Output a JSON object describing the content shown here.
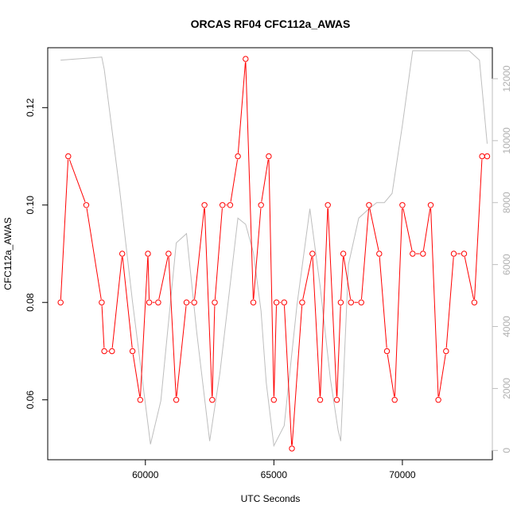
{
  "chart_data": {
    "type": "line",
    "title": "ORCAS RF04 CFC112a_AWAS",
    "xlabel": "UTC Seconds",
    "ylabel": "CFC112a_AWAS",
    "xlim": [
      56200,
      73500
    ],
    "ylim": [
      0.0477,
      0.1323
    ],
    "y2lim": [
      -300,
      13000
    ],
    "x_ticks": [
      60000,
      65000,
      70000
    ],
    "x_tick_labels": [
      "60000",
      "65000",
      "70000"
    ],
    "y_ticks": [
      0.06,
      0.08,
      0.1,
      0.12
    ],
    "y_tick_labels": [
      "0.06",
      "0.08",
      "0.10",
      "0.12"
    ],
    "y2_ticks": [
      0,
      2000,
      4000,
      6000,
      8000,
      10000,
      12000
    ],
    "y2_tick_labels": [
      "0",
      "2000",
      "4000",
      "6000",
      "8000",
      "10000",
      "12000"
    ],
    "grid": false,
    "colors": {
      "primary": "#ff0000",
      "secondary": "#bebebe"
    },
    "series": [
      {
        "axis": "left",
        "style": "line+points",
        "x": [
          56700,
          57000,
          57700,
          58300,
          58400,
          58700,
          59100,
          59500,
          59800,
          60100,
          60150,
          60500,
          60900,
          61200,
          61600,
          61900,
          62300,
          62600,
          62700,
          63000,
          63300,
          63600,
          63900,
          64200,
          64500,
          64800,
          65000,
          65100,
          65400,
          65700,
          66100,
          66500,
          66800,
          67100,
          67450,
          67600,
          67700,
          68000,
          68400,
          68700,
          69100,
          69400,
          69700,
          70000,
          70400,
          70800,
          71100,
          71400,
          71700,
          72000,
          72400,
          72800,
          73100,
          73300
        ],
        "y": [
          0.08,
          0.11,
          0.1,
          0.08,
          0.07,
          0.07,
          0.09,
          0.07,
          0.06,
          0.09,
          0.08,
          0.08,
          0.09,
          0.06,
          0.08,
          0.08,
          0.1,
          0.06,
          0.08,
          0.1,
          0.1,
          0.11,
          0.13,
          0.08,
          0.1,
          0.11,
          0.06,
          0.08,
          0.08,
          0.05,
          0.08,
          0.09,
          0.06,
          0.1,
          0.06,
          0.08,
          0.09,
          0.08,
          0.08,
          0.1,
          0.09,
          0.07,
          0.06,
          0.1,
          0.09,
          0.09,
          0.1,
          0.06,
          0.07,
          0.09,
          0.09,
          0.08,
          0.11,
          0.11
        ]
      },
      {
        "axis": "right",
        "style": "line",
        "x": [
          56700,
          58300,
          58400,
          59000,
          59500,
          60200,
          60600,
          61200,
          61600,
          62000,
          62500,
          62900,
          63600,
          63900,
          64200,
          64500,
          64700,
          65000,
          65400,
          65900,
          66400,
          66800,
          67200,
          67500,
          67600,
          67900,
          68300,
          68700,
          69000,
          69300,
          69600,
          70000,
          70400,
          70800,
          71500,
          72600,
          73000,
          73300
        ],
        "y": [
          12600,
          12700,
          12300,
          8400,
          4800,
          200,
          1600,
          6700,
          7000,
          3800,
          300,
          2500,
          7500,
          7300,
          6400,
          4500,
          2200,
          150,
          800,
          4700,
          7800,
          5300,
          2300,
          650,
          300,
          6000,
          7500,
          7800,
          8000,
          8000,
          8300,
          10500,
          12900,
          12900,
          12900,
          12900,
          12600,
          9900
        ]
      }
    ]
  }
}
